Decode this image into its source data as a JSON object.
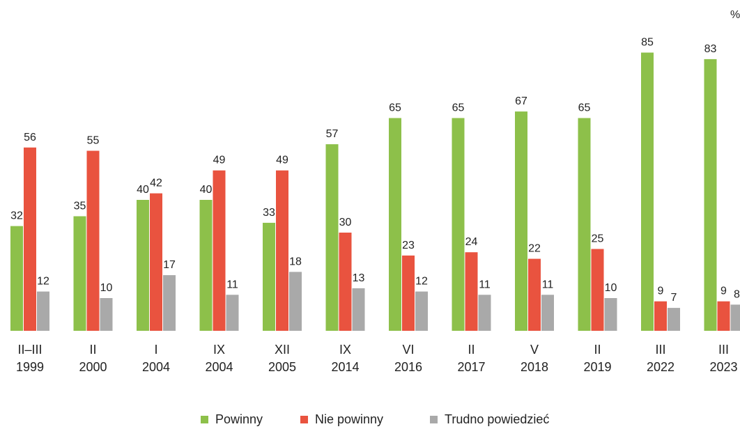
{
  "chart_data": {
    "type": "bar",
    "title": "",
    "unit": "%",
    "categories": [
      [
        "II–III",
        "1999"
      ],
      [
        "II",
        "2000"
      ],
      [
        "I",
        "2004"
      ],
      [
        "IX",
        "2004"
      ],
      [
        "XII",
        "2005"
      ],
      [
        "IX",
        "2014"
      ],
      [
        "VI",
        "2016"
      ],
      [
        "II",
        "2017"
      ],
      [
        "V",
        "2018"
      ],
      [
        "II",
        "2019"
      ],
      [
        "III",
        "2022"
      ],
      [
        "III",
        "2023"
      ]
    ],
    "series": [
      {
        "name": "Powinny",
        "color": "#8dc04a",
        "values": [
          32,
          35,
          40,
          40,
          33,
          57,
          65,
          65,
          67,
          65,
          85,
          83
        ]
      },
      {
        "name": "Nie powinny",
        "color": "#e9533f",
        "values": [
          56,
          55,
          42,
          49,
          49,
          30,
          23,
          24,
          22,
          25,
          9,
          9
        ]
      },
      {
        "name": "Trudno powiedzieć",
        "color": "#a9a9a9",
        "values": [
          12,
          10,
          17,
          11,
          18,
          13,
          12,
          11,
          11,
          10,
          7,
          8
        ]
      }
    ],
    "ylim": [
      0,
      90
    ],
    "legend_position": "bottom",
    "grid": false
  }
}
